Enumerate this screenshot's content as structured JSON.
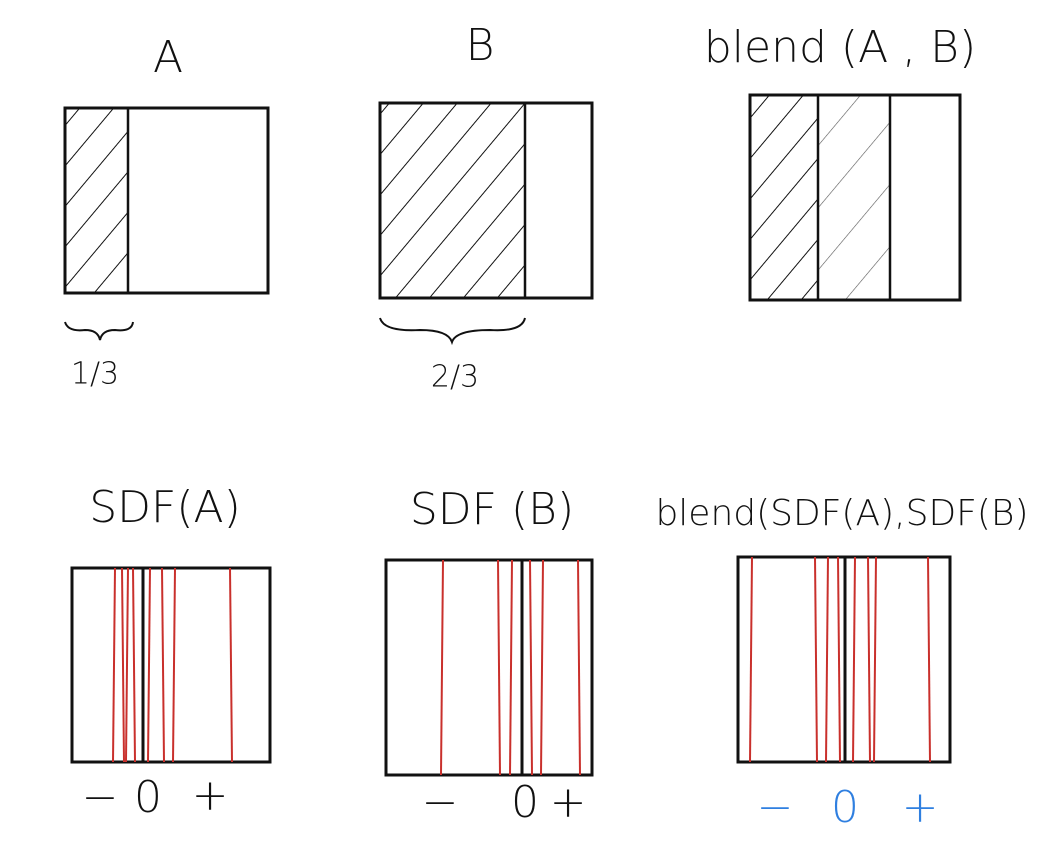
{
  "top_panels": [
    {
      "title": "A",
      "fraction": "1/3"
    },
    {
      "title": "B",
      "fraction": "2/3"
    },
    {
      "title": "blend (A , B)"
    }
  ],
  "bottom_panels": [
    {
      "title": "SDF(A)",
      "axis": [
        "−",
        "0",
        "+"
      ]
    },
    {
      "title": "SDF (B)",
      "axis": [
        "−",
        "0",
        "+"
      ]
    },
    {
      "title": "blend(SDF(A),SDF(B)",
      "axis": [
        "−",
        "0",
        "+"
      ]
    }
  ]
}
